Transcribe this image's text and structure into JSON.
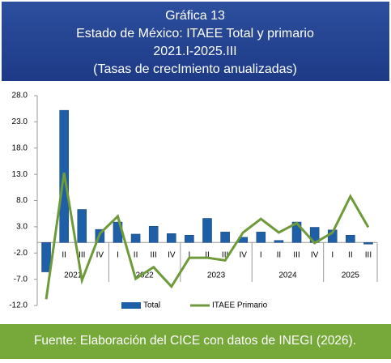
{
  "chart_data": {
    "type": "bar_line",
    "title": [
      "Gráfica 13",
      "Estado de México: ITAEE Total y primario",
      "2021.I-2025.III",
      "(Tasas de crecImiento anualizadas)"
    ],
    "source": "Fuente: Elaboración del CICE con datos de INEGI (2026).",
    "categories": [
      "I",
      "II",
      "III",
      "IV",
      "I",
      "II",
      "III",
      "IV",
      "I",
      "II",
      "III",
      "IV",
      "I",
      "II",
      "III",
      "IV",
      "I",
      "II",
      "III"
    ],
    "year_groups": [
      {
        "label": "2021",
        "quarters": 4
      },
      {
        "label": "2022",
        "quarters": 4
      },
      {
        "label": "2023",
        "quarters": 4
      },
      {
        "label": "2024",
        "quarters": 4
      },
      {
        "label": "2025",
        "quarters": 3
      }
    ],
    "series": [
      {
        "name": "Total",
        "type": "bar",
        "color": "#1f5fa8",
        "values": [
          -5.6,
          25.2,
          6.3,
          2.5,
          3.9,
          1.6,
          3.1,
          1.7,
          1.4,
          4.6,
          2.0,
          1.0,
          2.0,
          0.4,
          3.9,
          2.9,
          2.4,
          1.4,
          -0.3
        ]
      },
      {
        "name": "ITAEE Primario",
        "type": "line",
        "color": "#6e9a3a",
        "values": [
          -10.8,
          13.3,
          -7.2,
          1.7,
          5.0,
          -6.9,
          -4.7,
          -8.4,
          -2.9,
          -2.9,
          -3.4,
          1.9,
          4.5,
          1.9,
          3.7,
          -0.1,
          1.9,
          8.8,
          2.9
        ]
      }
    ],
    "ylim": [
      -12,
      28
    ],
    "yticks": [
      {
        "value": -12,
        "label": "-12.0"
      },
      {
        "value": -7,
        "label": "-7.0"
      },
      {
        "value": -2,
        "label": "-2.0"
      },
      {
        "value": 3,
        "label": "3.0"
      },
      {
        "value": 8,
        "label": "8.0"
      },
      {
        "value": 13,
        "label": "13.0"
      },
      {
        "value": 18,
        "label": "18.0"
      },
      {
        "value": 23,
        "label": "23.0"
      },
      {
        "value": 28,
        "label": "28.0"
      }
    ],
    "legend": "bottom"
  }
}
